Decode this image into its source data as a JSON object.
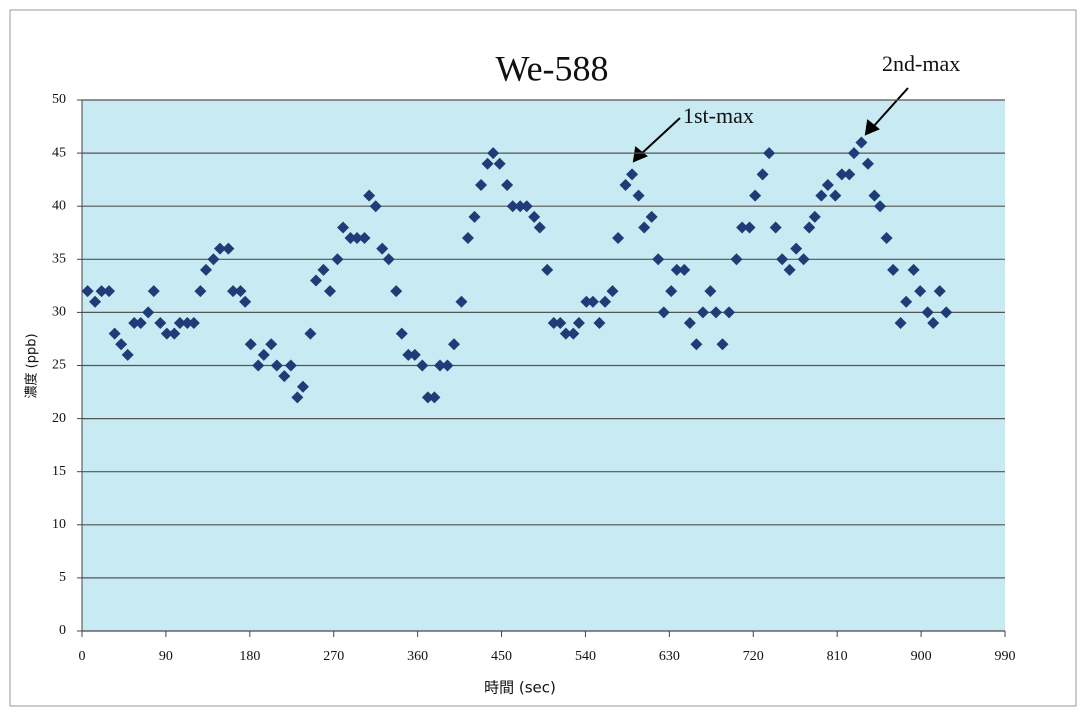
{
  "chart_data": {
    "type": "scatter",
    "title": "We-588",
    "x_label": "時間 (sec)",
    "y_label": "濃度 (ppb)",
    "annotations": [
      "1st-max",
      "2nd-max"
    ],
    "color": "#1f3c78",
    "background": "#c8eaf3",
    "grid": true,
    "xlim": [
      0,
      990
    ],
    "xticks": [
      0,
      90,
      180,
      270,
      360,
      450,
      540,
      630,
      720,
      810,
      900,
      990
    ],
    "ylim": [
      0,
      50
    ],
    "yticks": [
      0,
      5,
      10,
      15,
      20,
      25,
      30,
      35,
      40,
      45,
      50
    ],
    "x": [
      6,
      14,
      21,
      29,
      35,
      42,
      49,
      56,
      63,
      71,
      77,
      84,
      91,
      99,
      105,
      113,
      120,
      127,
      133,
      141,
      148,
      157,
      162,
      170,
      175,
      181,
      189,
      195,
      203,
      209,
      217,
      224,
      231,
      237,
      245,
      251,
      259,
      266,
      274,
      280,
      288,
      295,
      303,
      308,
      315,
      322,
      329,
      337,
      343,
      350,
      357,
      365,
      371,
      378,
      384,
      392,
      399,
      407,
      414,
      421,
      428,
      435,
      441,
      448,
      456,
      462,
      470,
      477,
      485,
      491,
      499,
      506,
      513,
      519,
      527,
      533,
      541,
      548,
      555,
      561,
      569,
      575,
      583,
      590,
      597,
      603,
      611,
      618,
      624,
      632,
      638,
      646,
      652,
      659,
      666,
      674,
      680,
      687,
      694,
      702,
      708,
      716,
      722,
      730,
      737,
      744,
      751,
      759,
      766,
      774,
      780,
      786,
      793,
      800,
      808,
      815,
      823,
      828,
      836,
      843,
      850,
      856,
      863,
      870,
      878,
      884,
      892,
      899,
      907,
      913,
      920,
      927
    ],
    "y": [
      32,
      31,
      32,
      32,
      28,
      27,
      26,
      29,
      29,
      30,
      32,
      29,
      28,
      28,
      29,
      29,
      29,
      32,
      34,
      35,
      36,
      36,
      32,
      32,
      31,
      27,
      25,
      26,
      27,
      25,
      24,
      25,
      22,
      23,
      28,
      33,
      34,
      32,
      35,
      38,
      37,
      37,
      37,
      41,
      40,
      36,
      35,
      32,
      28,
      26,
      26,
      25,
      22,
      22,
      25,
      25,
      27,
      31,
      37,
      39,
      42,
      44,
      45,
      44,
      42,
      40,
      40,
      40,
      39,
      38,
      34,
      29,
      29,
      28,
      28,
      29,
      31,
      31,
      29,
      31,
      32,
      37,
      42,
      43,
      41,
      38,
      39,
      35,
      30,
      32,
      34,
      34,
      29,
      27,
      30,
      32,
      30,
      27,
      30,
      35,
      38,
      38,
      41,
      43,
      45,
      38,
      35,
      34,
      36,
      35,
      38,
      39,
      41,
      42,
      41,
      43,
      43,
      45,
      46,
      44,
      41,
      40,
      37,
      34,
      29,
      31,
      34,
      32,
      30,
      29,
      32,
      30
    ]
  }
}
